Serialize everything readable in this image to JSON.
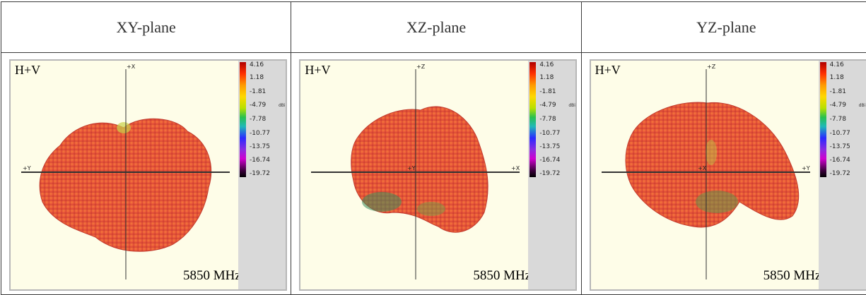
{
  "headers": [
    "XY-plane",
    "XZ-plane",
    "YZ-plane"
  ],
  "panels": [
    {
      "mode": "H+V",
      "frequency": "5850 MHz",
      "vertical_axis": "+X",
      "horizontal_axis_left": "+Y",
      "center_label": ""
    },
    {
      "mode": "H+V",
      "frequency": "5850 MHz",
      "vertical_axis": "+Z",
      "horizontal_axis_right": "+X",
      "center_label": "+Y"
    },
    {
      "mode": "H+V",
      "frequency": "5850 MHz",
      "vertical_axis": "+Z",
      "horizontal_axis_right": "+Y",
      "center_label": "+X"
    }
  ],
  "colorbar": {
    "ticks": [
      "4.16",
      "1.18",
      "-1.81",
      "-4.79",
      "-7.78",
      "-10.77",
      "-13.75",
      "-16.74",
      "-19.72"
    ],
    "unit": "dBi"
  }
}
